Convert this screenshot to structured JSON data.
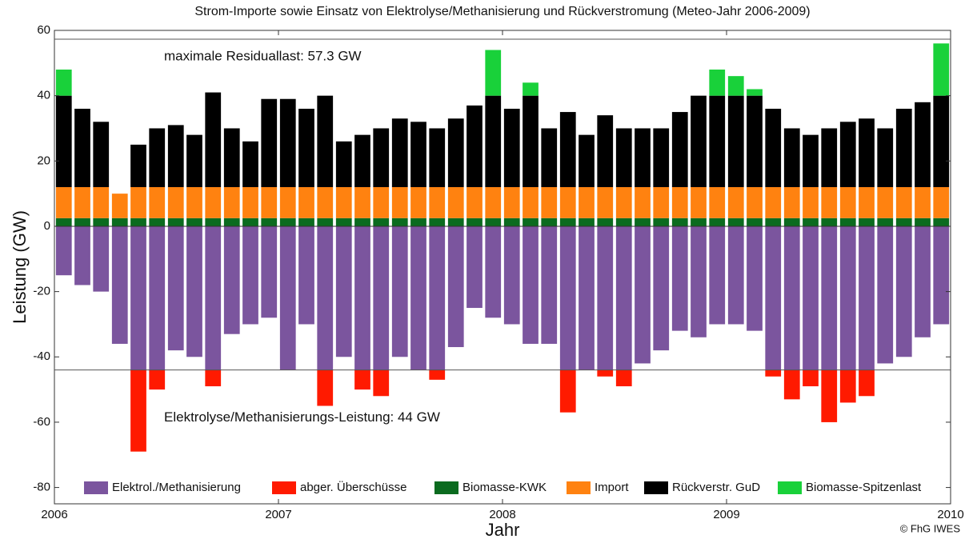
{
  "chart_data": {
    "type": "bar",
    "title": "Strom-Importe sowie Einsatz von Elektrolyse/Methanisierung und Rückverstromung (Meteo-Jahr 2006-2009)",
    "x_label": "Jahr",
    "y_label": "Leistung (GW)",
    "credit": "© FhG IWES",
    "annotations": [
      {
        "text": "maximale Residuallast: 57.3 GW",
        "y": 57.3
      },
      {
        "text": "Elektrolyse/Methanisierungs-Leistung: 44 GW",
        "y": -44
      }
    ],
    "stacked": true,
    "x": [
      2006.042,
      2006.125,
      2006.208,
      2006.292,
      2006.375,
      2006.458,
      2006.542,
      2006.625,
      2006.708,
      2006.792,
      2006.875,
      2006.958,
      2007.042,
      2007.125,
      2007.208,
      2007.292,
      2007.375,
      2007.458,
      2007.542,
      2007.625,
      2007.708,
      2007.792,
      2007.875,
      2007.958,
      2008.042,
      2008.125,
      2008.208,
      2008.292,
      2008.375,
      2008.458,
      2008.542,
      2008.625,
      2008.708,
      2008.792,
      2008.875,
      2008.958,
      2009.042,
      2009.125,
      2009.208,
      2009.292,
      2009.375,
      2009.458,
      2009.542,
      2009.625,
      2009.708,
      2009.792,
      2009.875,
      2009.958
    ],
    "series": [
      {
        "name": "Elektrol./Methanisierung",
        "color": "#7b559e",
        "values": [
          -15,
          -18,
          -20,
          -36,
          -44,
          -44,
          -38,
          -40,
          -44,
          -33,
          -30,
          -28,
          -44,
          -30,
          -44,
          -40,
          -44,
          -44,
          -40,
          -44,
          -44,
          -37,
          -25,
          -28,
          -30,
          -36,
          -36,
          -44,
          -44,
          -44,
          -44,
          -42,
          -38,
          -32,
          -34,
          -30,
          -30,
          -32,
          -44,
          -44,
          -44,
          -44,
          -44,
          -44,
          -42,
          -40,
          -34,
          -30
        ]
      },
      {
        "name": "abger. Überschüsse",
        "color": "#ff1a00",
        "values": [
          0,
          0,
          0,
          0,
          -25,
          -6,
          0,
          0,
          -5,
          0,
          0,
          0,
          0,
          0,
          -11,
          0,
          -6,
          -8,
          0,
          0,
          -3,
          0,
          0,
          0,
          0,
          0,
          0,
          -13,
          0,
          -2,
          -5,
          0,
          0,
          0,
          0,
          0,
          0,
          0,
          -2,
          -9,
          -5,
          -16,
          -10,
          -8,
          0,
          0,
          0,
          0
        ]
      },
      {
        "name": "Biomasse-KWK",
        "color": "#0b6b1f",
        "values": [
          2.5,
          2.5,
          2.5,
          2.5,
          2.5,
          2.5,
          2.5,
          2.5,
          2.5,
          2.5,
          2.5,
          2.5,
          2.5,
          2.5,
          2.5,
          2.5,
          2.5,
          2.5,
          2.5,
          2.5,
          2.5,
          2.5,
          2.5,
          2.5,
          2.5,
          2.5,
          2.5,
          2.5,
          2.5,
          2.5,
          2.5,
          2.5,
          2.5,
          2.5,
          2.5,
          2.5,
          2.5,
          2.5,
          2.5,
          2.5,
          2.5,
          2.5,
          2.5,
          2.5,
          2.5,
          2.5,
          2.5,
          2.5
        ]
      },
      {
        "name": "Import",
        "color": "#ff8210",
        "values": [
          9.5,
          9.5,
          9.5,
          7.5,
          9.5,
          9.5,
          9.5,
          9.5,
          9.5,
          9.5,
          9.5,
          9.5,
          9.5,
          9.5,
          9.5,
          9.5,
          9.5,
          9.5,
          9.5,
          9.5,
          9.5,
          9.5,
          9.5,
          9.5,
          9.5,
          9.5,
          9.5,
          9.5,
          9.5,
          9.5,
          9.5,
          9.5,
          9.5,
          9.5,
          9.5,
          9.5,
          9.5,
          9.5,
          9.5,
          9.5,
          9.5,
          9.5,
          9.5,
          9.5,
          9.5,
          9.5,
          9.5,
          9.5
        ]
      },
      {
        "name": "Rückverstr. GuD",
        "color": "#000000",
        "values": [
          28,
          24,
          20,
          0,
          13,
          18,
          19,
          16,
          29,
          18,
          14,
          27,
          27,
          24,
          28,
          14,
          16,
          18,
          21,
          20,
          18,
          21,
          25,
          28,
          24,
          28,
          18,
          23,
          16,
          22,
          18,
          18,
          18,
          23,
          28,
          28,
          28,
          28,
          24,
          18,
          16,
          18,
          20,
          21,
          18,
          24,
          26,
          28
        ]
      },
      {
        "name": "Biomasse-Spitzenlast",
        "color": "#19d13a",
        "values": [
          8,
          0,
          0,
          0,
          0,
          0,
          0,
          0,
          0,
          0,
          0,
          0,
          0,
          0,
          0,
          0,
          0,
          0,
          0,
          0,
          0,
          0,
          0,
          14,
          0,
          4,
          0,
          0,
          0,
          0,
          0,
          0,
          0,
          0,
          0,
          8,
          6,
          2,
          0,
          0,
          0,
          0,
          0,
          0,
          0,
          0,
          0,
          16
        ]
      }
    ],
    "xlim": [
      2006,
      2010
    ],
    "xticks": [
      2006,
      2007,
      2008,
      2009,
      2010
    ],
    "ylim": [
      -85,
      60
    ],
    "yticks": [
      -80,
      -60,
      -40,
      -20,
      0,
      20,
      40,
      60
    ],
    "grid": false,
    "legend": "bottom"
  }
}
